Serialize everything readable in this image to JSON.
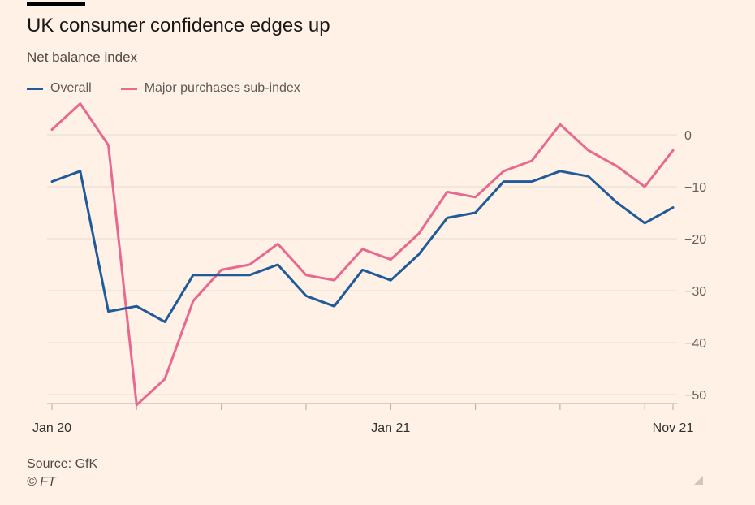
{
  "title": "UK consumer confidence edges up",
  "subtitle": "Net balance index",
  "legend": [
    {
      "label": "Overall",
      "color": "#1f5a9a"
    },
    {
      "label": "Major purchases sub-index",
      "color": "#e8698f"
    }
  ],
  "source": "Source: GfK",
  "credit": "© FT",
  "chart_data": {
    "type": "line",
    "title": "UK consumer confidence edges up",
    "subtitle": "Net balance index",
    "xlabel": "",
    "ylabel": "",
    "x": [
      "Jan 2020",
      "Feb 2020",
      "Mar 2020",
      "Apr 2020",
      "May 2020",
      "Jun 2020",
      "Jul 2020",
      "Aug 2020",
      "Sep 2020",
      "Oct 2020",
      "Nov 2020",
      "Dec 2020",
      "Jan 2021",
      "Feb 2021",
      "Mar 2021",
      "Apr 2021",
      "May 2021",
      "Jun 2021",
      "Jul 2021",
      "Aug 2021",
      "Sep 2021",
      "Oct 2021",
      "Nov 2021"
    ],
    "x_tick_labels": [
      {
        "index": 0,
        "label": "Jan 20"
      },
      {
        "index": 12,
        "label": "Jan 21"
      },
      {
        "index": 22,
        "label": "Nov 21"
      }
    ],
    "series": [
      {
        "name": "Overall",
        "color": "#1f5a9a",
        "values": [
          -9,
          -7,
          -34,
          -33,
          -36,
          -27,
          -27,
          -27,
          -25,
          -31,
          -33,
          -26,
          -28,
          -23,
          -16,
          -15,
          -9,
          -9,
          -7,
          -8,
          -13,
          -17,
          -14
        ]
      },
      {
        "name": "Major purchases sub-index",
        "color": "#e8698f",
        "values": [
          1,
          6,
          -2,
          -52,
          -47,
          -32,
          -26,
          -25,
          -21,
          -27,
          -28,
          -22,
          -24,
          -19,
          -11,
          -12,
          -7,
          -5,
          2,
          -3,
          -6,
          -10,
          -3
        ]
      }
    ],
    "yticks": [
      0,
      -10,
      -20,
      -30,
      -40,
      -50
    ],
    "ylim": [
      -52,
      6
    ],
    "y_axis_side": "right",
    "grid": true,
    "legend_position": "top-left"
  }
}
